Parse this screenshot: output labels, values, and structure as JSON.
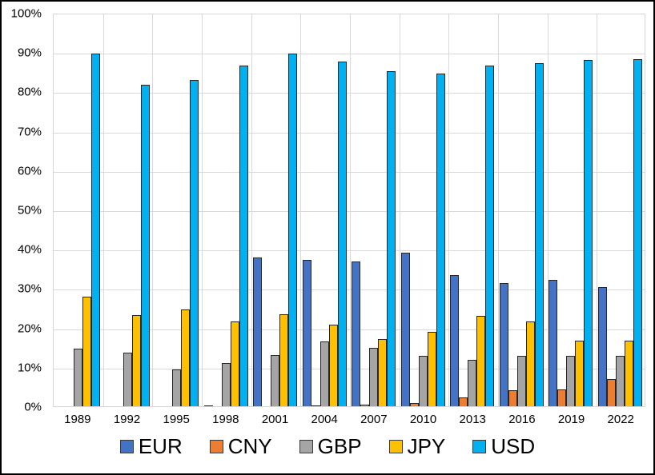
{
  "chart_data": {
    "type": "bar",
    "title": "",
    "xlabel": "",
    "ylabel": "",
    "ylim": [
      0,
      100
    ],
    "ytick_step": 10,
    "ytick_labels": [
      "0%",
      "10%",
      "20%",
      "30%",
      "40%",
      "50%",
      "60%",
      "70%",
      "80%",
      "90%",
      "100%"
    ],
    "grid": true,
    "legend_position": "bottom",
    "categories": [
      "1989",
      "1992",
      "1995",
      "1998",
      "2001",
      "2004",
      "2007",
      "2010",
      "2013",
      "2016",
      "2019",
      "2022"
    ],
    "series": [
      {
        "name": "EUR",
        "color": "#4472C4",
        "values": [
          0,
          0,
          0,
          0.3,
          37.9,
          37.4,
          37.0,
          39.1,
          33.4,
          31.4,
          32.3,
          30.5
        ]
      },
      {
        "name": "CNY",
        "color": "#ED7D31",
        "values": [
          0,
          0,
          0,
          0,
          0,
          0.1,
          0.5,
          0.9,
          2.2,
          4.0,
          4.3,
          7.0
        ]
      },
      {
        "name": "GBP",
        "color": "#A5A5A5",
        "values": [
          14.6,
          13.7,
          9.4,
          11.0,
          13.0,
          16.5,
          14.9,
          12.9,
          11.8,
          12.8,
          12.8,
          12.9
        ]
      },
      {
        "name": "JPY",
        "color": "#FFC000",
        "values": [
          28.0,
          23.2,
          24.6,
          21.7,
          23.5,
          20.8,
          17.2,
          19.0,
          23.0,
          21.6,
          16.8,
          16.7
        ]
      },
      {
        "name": "USD",
        "color": "#00B0F0",
        "values": [
          90.0,
          82.0,
          83.2,
          86.9,
          90.0,
          88.0,
          85.6,
          84.9,
          87.0,
          87.6,
          88.3,
          88.5
        ]
      }
    ],
    "bar_border_color": "#262626",
    "gridline_color": "#d9d9d9"
  }
}
